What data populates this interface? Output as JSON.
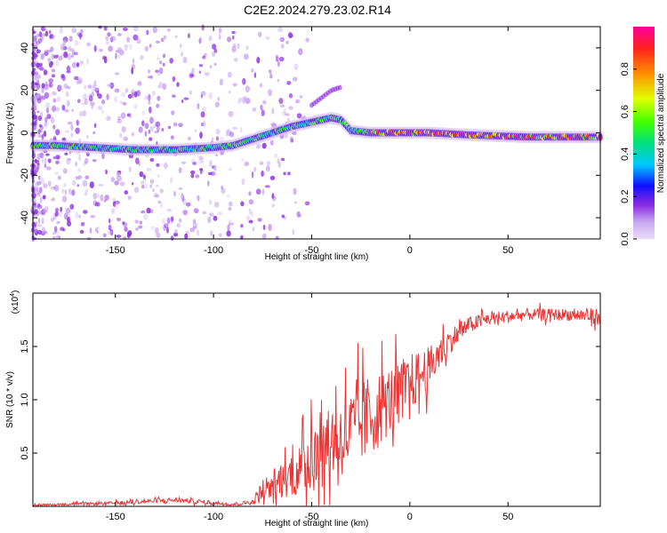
{
  "chart_data": [
    {
      "type": "heatmap",
      "title": "C2E2.2024.279.23.02.R14",
      "xlabel": "Height of straight line (km)",
      "ylabel": "Frequency (Hz)",
      "xlim": [
        -192,
        97
      ],
      "ylim": [
        -50,
        50
      ],
      "xticks": [
        "-150",
        "-100",
        "-50",
        "0",
        "50"
      ],
      "yticks": [
        "40",
        "20",
        "0",
        "-20",
        "-40"
      ],
      "colorbar": {
        "label": "Normalized spectral amplitude",
        "range": [
          0,
          1
        ],
        "ticks": [
          "0.0",
          "0.2",
          "0.4",
          "0.6",
          "0.8"
        ]
      },
      "ridge": {
        "description_points_x": [
          -192,
          -180,
          -160,
          -140,
          -120,
          -100,
          -90,
          -80,
          -70,
          -60,
          -50,
          -40,
          -35,
          -30,
          -20,
          -10,
          0,
          10,
          30,
          60,
          97
        ],
        "description_points_y": [
          -6,
          -6,
          -7,
          -8,
          -8,
          -7,
          -6,
          -3,
          0,
          3,
          5,
          7,
          6,
          1,
          0,
          0,
          0,
          0,
          -1,
          -2,
          -2
        ]
      }
    },
    {
      "type": "line",
      "xlabel": "Height of straight line (km)",
      "ylabel": "SNR (10 * v/v)",
      "yscale_label": "(x10",
      "yscale_exp": "4",
      "yscale_close": ")",
      "xlim": [
        -192,
        97
      ],
      "ylim": [
        0,
        2.0
      ],
      "xticks": [
        "-150",
        "-100",
        "-50",
        "0",
        "50"
      ],
      "yticks": [
        "1.5",
        "1.0",
        "0.5"
      ],
      "series": [
        {
          "color": "#ee3333",
          "trend_x": [
            -192,
            -150,
            -120,
            -90,
            -80,
            -75,
            -60,
            -50,
            -40,
            -30,
            -20,
            -10,
            0,
            10,
            20,
            30,
            40,
            60,
            80,
            97
          ],
          "trend_y": [
            0.01,
            0.03,
            0.06,
            0.02,
            0.04,
            0.15,
            0.3,
            0.4,
            0.6,
            0.7,
            0.85,
            1.0,
            1.15,
            1.3,
            1.55,
            1.7,
            1.76,
            1.8,
            1.8,
            1.78
          ],
          "spread_y": [
            0.01,
            0.02,
            0.03,
            0.02,
            0.03,
            0.15,
            0.25,
            0.4,
            0.45,
            0.5,
            0.5,
            0.4,
            0.35,
            0.25,
            0.15,
            0.1,
            0.08,
            0.07,
            0.07,
            0.1
          ]
        }
      ]
    }
  ],
  "colors": {
    "scale": [
      "#c8a8f0",
      "#8a2be2",
      "#1010ff",
      "#00c8ff",
      "#00e080",
      "#40ff00",
      "#e0ff00",
      "#ff8c00",
      "#ff2020",
      "#ff00a0"
    ],
    "line": "#ee3333"
  }
}
